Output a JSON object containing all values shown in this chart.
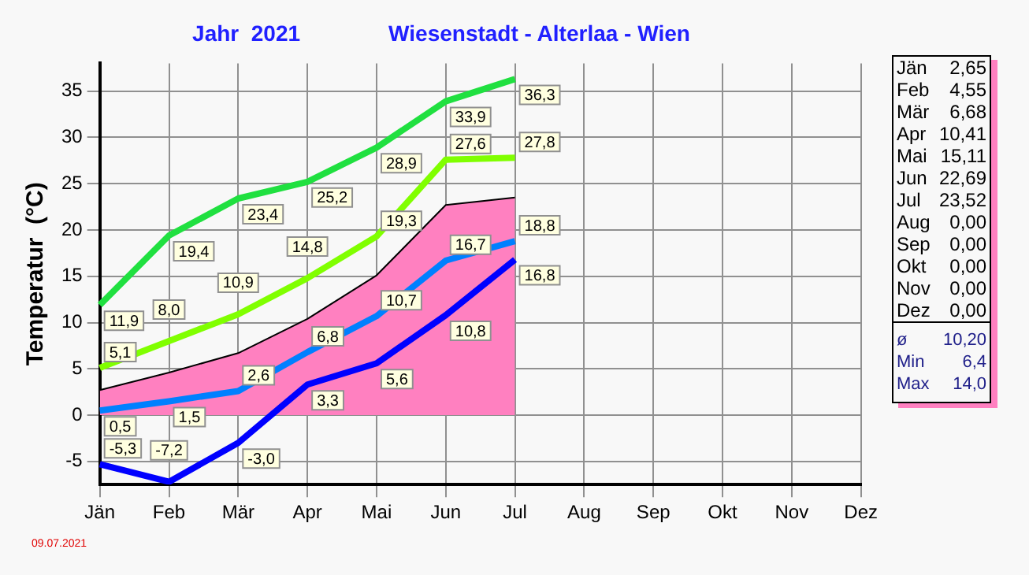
{
  "chart_data": {
    "type": "line",
    "title": "Jahr  2021",
    "subtitle": "Wiesenstadt - Alterlaa - Wien",
    "ylabel": "Temperatur  (°C)",
    "categories": [
      "Jän",
      "Feb",
      "Mär",
      "Apr",
      "Mai",
      "Jun",
      "Jul",
      "Aug",
      "Sep",
      "Okt",
      "Nov",
      "Dez"
    ],
    "series": [
      {
        "type": "area",
        "color": "#ff80c0",
        "values": [
          2.7,
          4.6,
          6.7,
          10.4,
          15.1,
          22.7,
          23.5,
          null,
          null,
          null,
          null,
          null
        ]
      },
      {
        "type": "line",
        "color": "#20e040",
        "values": [
          11.9,
          19.4,
          23.4,
          25.2,
          28.9,
          33.9,
          36.3,
          null,
          null,
          null,
          null,
          null
        ],
        "value_labels": [
          "11,9",
          "19,4",
          "23,4",
          "25,2",
          "28,9",
          "33,9",
          "36,3",
          null,
          null,
          null,
          null,
          null
        ]
      },
      {
        "type": "line",
        "color": "#80ff00",
        "values": [
          5.1,
          8.0,
          10.9,
          14.8,
          19.3,
          27.6,
          27.8,
          null,
          null,
          null,
          null,
          null
        ],
        "value_labels": [
          "5,1",
          "8,0",
          "10,9",
          "14,8",
          "19,3",
          "27,6",
          "27,8",
          null,
          null,
          null,
          null,
          null
        ]
      },
      {
        "type": "line",
        "color": "#0080ff",
        "values": [
          0.5,
          1.5,
          2.6,
          6.8,
          10.7,
          16.7,
          18.8,
          null,
          null,
          null,
          null,
          null
        ],
        "value_labels": [
          "0,5",
          "1,5",
          "2,6",
          "6,8",
          "10,7",
          "16,7",
          "18,8",
          null,
          null,
          null,
          null,
          null
        ]
      },
      {
        "type": "line",
        "color": "#0000ff",
        "values": [
          -5.3,
          -7.2,
          -3.0,
          3.3,
          5.6,
          10.8,
          16.8,
          null,
          null,
          null,
          null,
          null
        ],
        "value_labels": [
          "-5,3",
          "-7,2",
          "-3,0",
          "3,3",
          "5,6",
          "10,8",
          "16,8",
          null,
          null,
          null,
          null,
          null
        ]
      }
    ],
    "ylim": [
      -7.5,
      38
    ],
    "yticks": [
      -5,
      0,
      5,
      10,
      15,
      20,
      25,
      30,
      35
    ],
    "grid": true,
    "legend": false,
    "marker": "none",
    "line_style": "solid",
    "annotations": [
      "Jän 2,65",
      "Feb 4,55",
      "Mär 6,68",
      "Apr 10,41",
      "Mai 15,11",
      "Jun 22,69",
      "Jul 23,52",
      "Aug 0,00",
      "Sep 0,00",
      "Okt 0,00",
      "Nov 0,00",
      "Dez 0,00",
      "ø 10,20",
      "Min 6,4",
      "Max 14,0",
      "09.07.2021"
    ]
  }
}
